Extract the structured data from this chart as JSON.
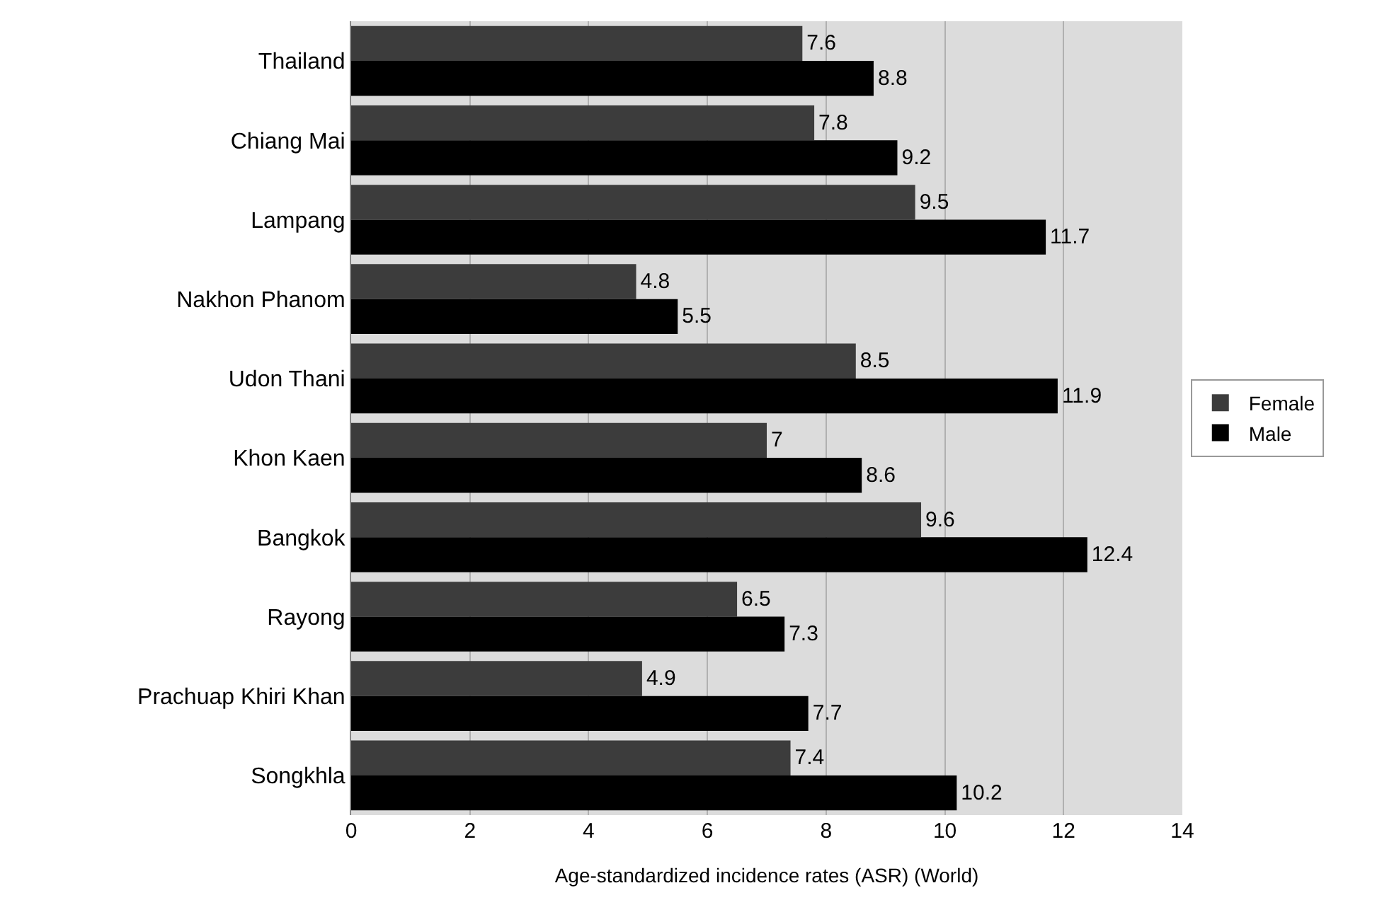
{
  "chart_data": {
    "type": "bar",
    "orientation": "horizontal",
    "xlabel": "Age-standardized incidence rates (ASR) (World)",
    "categories": [
      "Thailand",
      "Chiang Mai",
      "Lampang",
      "Nakhon Phanom",
      "Udon Thani",
      "Khon Kaen",
      "Bangkok",
      "Rayong",
      "Prachuap Khiri Khan",
      "Songkhla"
    ],
    "series": [
      {
        "name": "Female",
        "color": "#3c3c3c",
        "values": [
          7.6,
          7.8,
          9.5,
          4.8,
          8.5,
          7,
          9.6,
          6.5,
          4.9,
          7.4
        ]
      },
      {
        "name": "Male",
        "color": "#000000",
        "values": [
          8.8,
          9.2,
          11.7,
          5.5,
          11.9,
          8.6,
          12.4,
          7.3,
          7.7,
          10.2
        ]
      }
    ],
    "xlim": [
      0,
      14
    ],
    "xticks": [
      0,
      2,
      4,
      6,
      8,
      10,
      12,
      14
    ],
    "grid": "x",
    "legend": "right",
    "data_labels": true
  }
}
